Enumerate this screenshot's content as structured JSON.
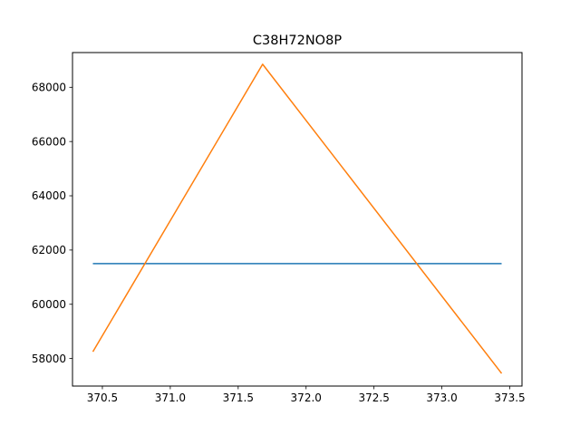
{
  "chart_data": {
    "type": "line",
    "title": "C38H72NO8P",
    "xlabel": "",
    "ylabel": "",
    "xlim": [
      370.28,
      373.59
    ],
    "ylim": [
      56985,
      69280
    ],
    "grid": false,
    "x_ticks": [
      370.5,
      371.0,
      371.5,
      372.0,
      372.5,
      373.0,
      373.5
    ],
    "x_tick_labels": [
      "370.5",
      "371.0",
      "371.5",
      "372.0",
      "372.5",
      "373.0",
      "373.5"
    ],
    "y_ticks": [
      58000,
      60000,
      62000,
      64000,
      66000,
      68000
    ],
    "y_tick_labels": [
      "58000",
      "60000",
      "62000",
      "64000",
      "66000",
      "68000"
    ],
    "series": [
      {
        "color": "#1f77b4",
        "x": [
          370.43,
          373.44
        ],
        "y": [
          61500,
          61500
        ]
      },
      {
        "color": "#ff7f0e",
        "x": [
          370.43,
          371.68,
          373.44
        ],
        "y": [
          58250,
          68850,
          57450
        ]
      }
    ]
  }
}
